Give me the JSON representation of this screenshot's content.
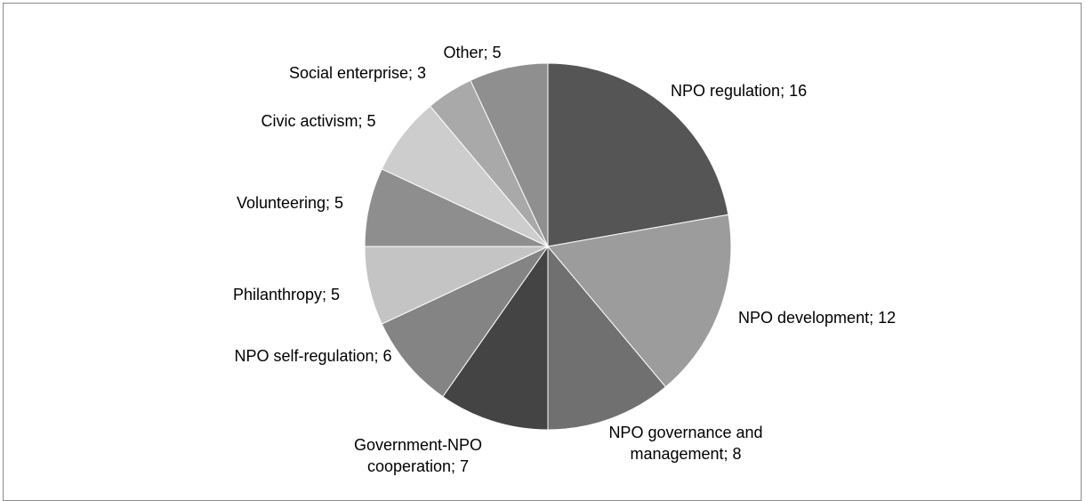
{
  "chart_data": {
    "type": "pie",
    "start_position": "12 o'clock",
    "direction": "clockwise",
    "slices": [
      {
        "label": "NPO regulation",
        "value": 16,
        "display": "NPO regulation; 16",
        "color": "#555555"
      },
      {
        "label": "NPO development",
        "value": 12,
        "display": "NPO development; 12",
        "color": "#9c9c9c"
      },
      {
        "label": "NPO governance and management",
        "value": 8,
        "display": "NPO governance and management; 8",
        "color": "#707070"
      },
      {
        "label": "Government-NPO cooperation",
        "value": 7,
        "display": "Government-NPO cooperation; 7",
        "color": "#444444"
      },
      {
        "label": "NPO self-regulation",
        "value": 6,
        "display": "NPO self-regulation; 6",
        "color": "#848484"
      },
      {
        "label": "Philanthropy",
        "value": 5,
        "display": "Philanthropy; 5",
        "color": "#c4c4c4"
      },
      {
        "label": "Volunteering",
        "value": 5,
        "display": "Volunteering; 5",
        "color": "#8e8e8e"
      },
      {
        "label": "Civic activism",
        "value": 5,
        "display": "Civic activism; 5",
        "color": "#cdcdcd"
      },
      {
        "label": "Social enterprise",
        "value": 3,
        "display": "Social enterprise; 3",
        "color": "#a9a9a9"
      },
      {
        "label": "Other",
        "value": 5,
        "display": "Other; 5",
        "color": "#8f8f8f"
      }
    ]
  }
}
